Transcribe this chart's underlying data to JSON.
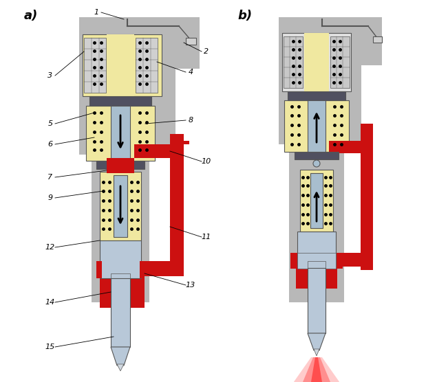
{
  "background_color": "#ffffff",
  "gray_bg": "#b8b8b8",
  "yellow_fill": "#f0e8a0",
  "red_fill": "#cc1010",
  "steel_color": "#a8bece",
  "silver": "#b8c8d8",
  "dark_color": "#303030",
  "lightgray": "#d0d0d0",
  "darkgray": "#555555",
  "armature_color": "#505060",
  "fig_width": 6.35,
  "fig_height": 5.56,
  "dpi": 100
}
